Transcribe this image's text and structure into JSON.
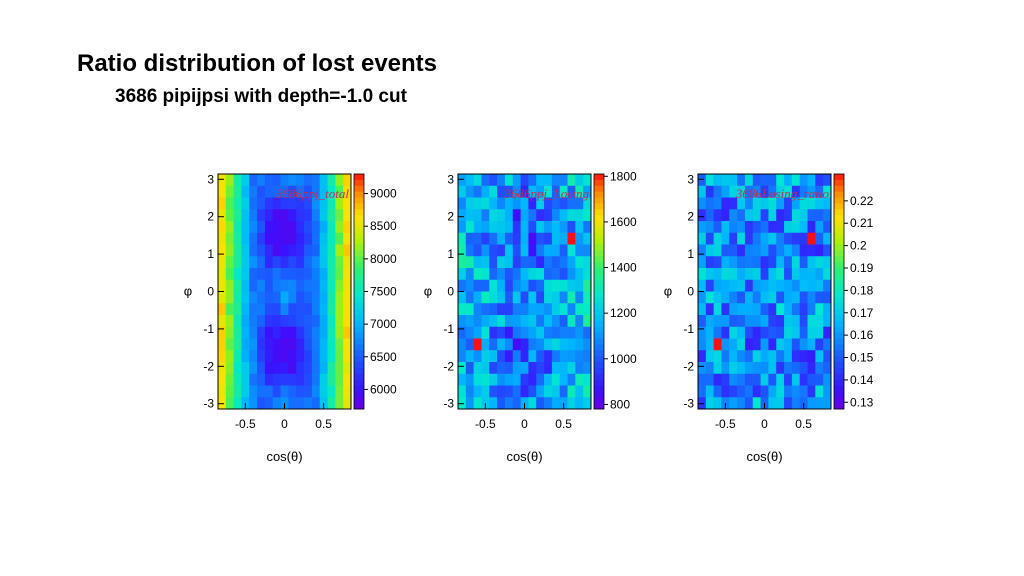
{
  "slide": {
    "title": "Ratio distribution of lost events",
    "subtitle": "3686 pipijpsi with depth=-1.0 cut"
  },
  "chart_data": [
    {
      "type": "heatmap",
      "title": "3686ppj_total",
      "xlabel": "cos(θ)",
      "ylabel": "φ",
      "xlim": [
        -0.85,
        0.85
      ],
      "ylim": [
        -3.1416,
        3.1416
      ],
      "x_ticks": [
        "-0.5",
        "0",
        "0.5"
      ],
      "y_ticks": [
        "-3",
        "-2",
        "-1",
        "0",
        "1",
        "2",
        "3"
      ],
      "z_ticks": [
        "6000",
        "6500",
        "7000",
        "7500",
        "8000",
        "8500",
        "9000"
      ],
      "zlim": [
        5700,
        9300
      ],
      "nx": 17,
      "ny": 20,
      "pattern": "total",
      "seed": 7
    },
    {
      "type": "heatmap",
      "title": "3686ppj_Losing",
      "xlabel": "cos(θ)",
      "ylabel": "φ",
      "xlim": [
        -0.85,
        0.85
      ],
      "ylim": [
        -3.1416,
        3.1416
      ],
      "x_ticks": [
        "-0.5",
        "0",
        "0.5"
      ],
      "y_ticks": [
        "-3",
        "-2",
        "-1",
        "0",
        "1",
        "2",
        "3"
      ],
      "z_ticks": [
        "800",
        "1000",
        "1200",
        "1400",
        "1600",
        "1800"
      ],
      "zlim": [
        780,
        1810
      ],
      "nx": 17,
      "ny": 20,
      "pattern": "losing",
      "seed": 13,
      "hotspots": [
        [
          0.62,
          1.4
        ],
        [
          -0.62,
          -1.4
        ]
      ]
    },
    {
      "type": "heatmap",
      "title": "3686Losing_ratio",
      "xlabel": "cos(θ)",
      "ylabel": "φ",
      "xlim": [
        -0.85,
        0.85
      ],
      "ylim": [
        -3.1416,
        3.1416
      ],
      "x_ticks": [
        "-0.5",
        "0",
        "0.5"
      ],
      "y_ticks": [
        "-3",
        "-2",
        "-1",
        "0",
        "1",
        "2",
        "3"
      ],
      "z_ticks": [
        "0.13",
        "0.14",
        "0.15",
        "0.16",
        "0.17",
        "0.18",
        "0.19",
        "0.2",
        "0.21",
        "0.22"
      ],
      "zlim": [
        0.127,
        0.232
      ],
      "nx": 17,
      "ny": 20,
      "pattern": "ratio",
      "seed": 29,
      "hotspots": [
        [
          0.62,
          1.4
        ],
        [
          -0.62,
          -1.4
        ]
      ]
    }
  ]
}
